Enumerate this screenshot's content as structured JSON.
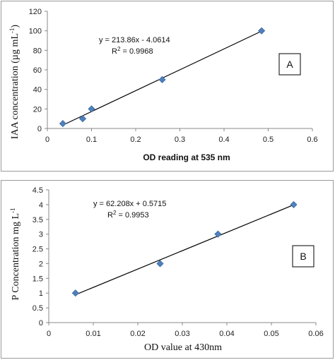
{
  "chart_data": [
    {
      "type": "scatter",
      "panel_label": "A",
      "xlabel": "OD reading at 535 nm",
      "ylabel": "IAA concentration (µg mL",
      "ylabel_sup": "-1",
      "ylabel_close": ")",
      "xlim": [
        0,
        0.6
      ],
      "ylim": [
        0,
        120
      ],
      "x_ticks": [
        "0",
        "0.1",
        "0.2",
        "0.3",
        "0.4",
        "0.5",
        "0.6"
      ],
      "y_ticks": [
        "0",
        "20",
        "40",
        "60",
        "80",
        "100",
        "120"
      ],
      "series": [
        {
          "x": [
            0.035,
            0.08,
            0.1,
            0.26,
            0.485
          ],
          "y": [
            5,
            10,
            20,
            50,
            100
          ]
        }
      ],
      "trendline": {
        "slope": 213.86,
        "intercept": -4.0614
      },
      "equation": "y = 213.86x - 4.0614",
      "r2_label": "R",
      "r2_value": " = 0.9968",
      "grid": false,
      "marker_color": "#4f81bd"
    },
    {
      "type": "scatter",
      "panel_label": "B",
      "xlabel": "OD value at 430nm",
      "ylabel": "P  Concentration  mg L",
      "ylabel_sup": "-1",
      "xlim": [
        0,
        0.06
      ],
      "ylim": [
        0,
        4.5
      ],
      "x_ticks": [
        "0",
        "0.01",
        "0.02",
        "0.03",
        "0.04",
        "0.05",
        "0.06"
      ],
      "y_ticks": [
        "0",
        "0.5",
        "1",
        "1.5",
        "2",
        "2.5",
        "3",
        "3.5",
        "4",
        "4.5"
      ],
      "series": [
        {
          "x": [
            0.006,
            0.025,
            0.038,
            0.055
          ],
          "y": [
            1,
            2,
            3,
            4
          ]
        }
      ],
      "trendline": {
        "slope": 62.208,
        "intercept": 0.5715
      },
      "equation": "y = 62.208x + 0.5715",
      "r2_label": "R",
      "r2_value": " = 0.9953",
      "grid": false,
      "marker_color": "#4f81bd"
    }
  ]
}
